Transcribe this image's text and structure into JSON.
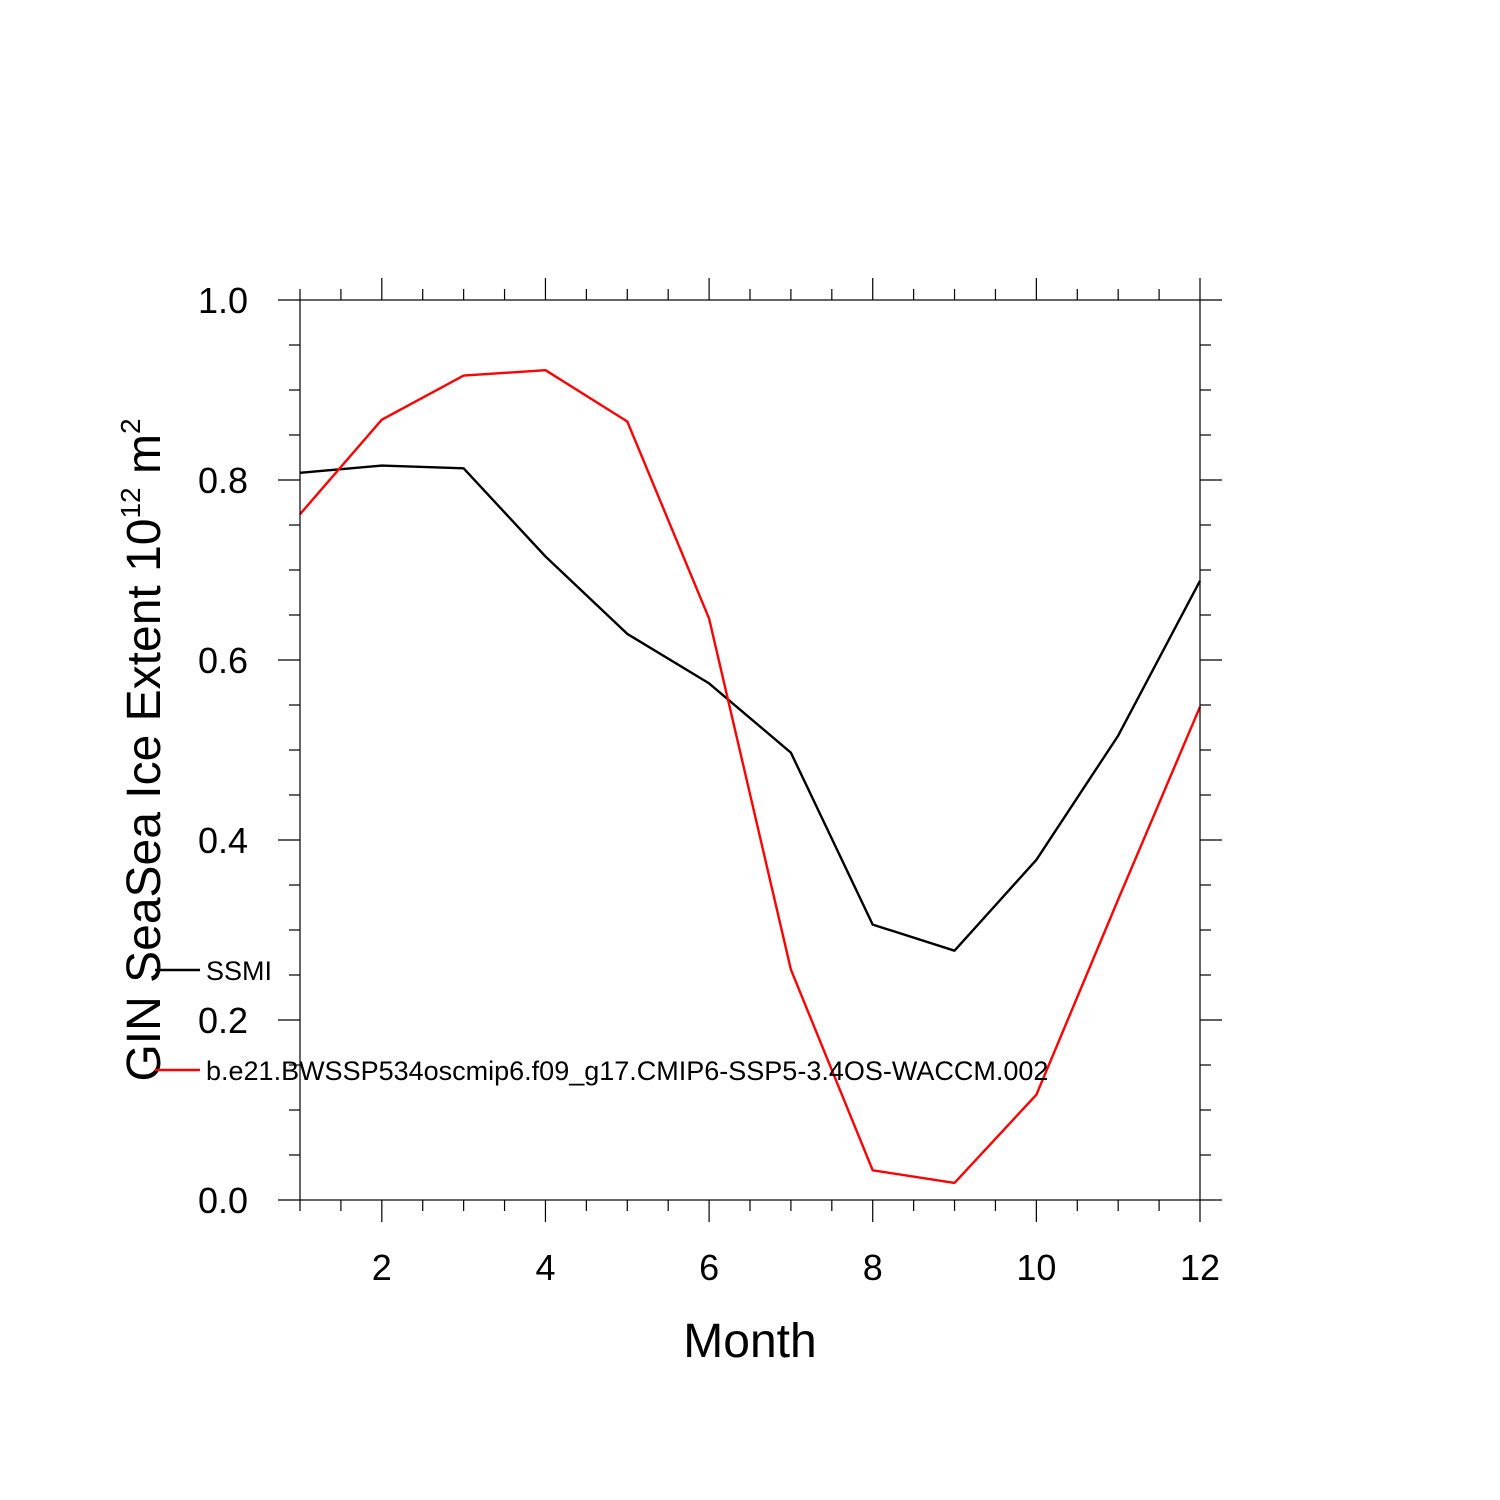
{
  "chart_data": {
    "type": "line",
    "title": "",
    "xlabel": "Month",
    "ylabel": "GIN SeaSea Ice Extent 10",
    "ylabel_sup": "12",
    "ylabel_unit": " m",
    "ylabel_unit_sup": "2",
    "xlim": [
      1,
      12
    ],
    "ylim": [
      0.0,
      1.0
    ],
    "xticks": [
      2,
      4,
      6,
      8,
      10,
      12
    ],
    "xtick_labels": [
      "2",
      "4",
      "6",
      "8",
      "10",
      "12"
    ],
    "yticks": [
      0.0,
      0.2,
      0.4,
      0.6,
      0.8,
      1.0
    ],
    "ytick_labels": [
      "0.0",
      "0.2",
      "0.4",
      "0.6",
      "0.8",
      "1.0"
    ],
    "grid": false,
    "legend_position": "lower-left",
    "x": [
      1,
      2,
      3,
      4,
      5,
      6,
      7,
      8,
      9,
      10,
      11,
      12
    ],
    "series": [
      {
        "name": "SSMI",
        "color": "#000000",
        "values": [
          0.808,
          0.816,
          0.813,
          0.715,
          0.629,
          0.574,
          0.497,
          0.306,
          0.277,
          0.378,
          0.516,
          0.688
        ]
      },
      {
        "name": "b.e21.BWSSP534oscmip6.f09_g17.CMIP6-SSP5-3.4OS-WACCM.002",
        "color": "#ff0000",
        "values": [
          0.762,
          0.867,
          0.916,
          0.922,
          0.865,
          0.646,
          0.256,
          0.033,
          0.019,
          0.117,
          0.334,
          0.548
        ]
      }
    ]
  }
}
